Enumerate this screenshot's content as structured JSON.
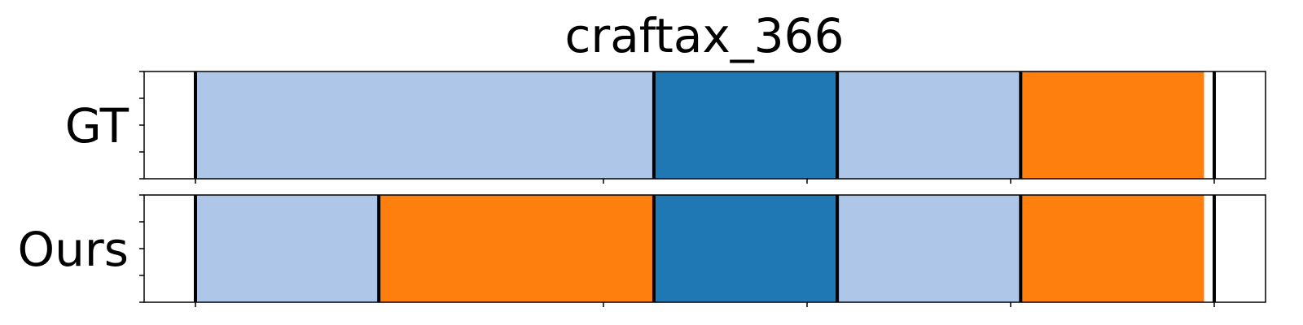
{
  "chart_data": {
    "type": "bar",
    "title": "craftax_366",
    "xlim": [
      0,
      1
    ],
    "rows": [
      {
        "label": "GT",
        "segments": [
          {
            "start": 0.05,
            "end": 0.5,
            "color": "#aec7e8"
          },
          {
            "start": 0.5,
            "end": 0.68,
            "color": "#1f77b4"
          },
          {
            "start": 0.68,
            "end": 0.86,
            "color": "#aec7e8"
          },
          {
            "start": 0.86,
            "end": 1.04,
            "color": "#ff7f0e"
          }
        ]
      },
      {
        "label": "Ours",
        "segments": [
          {
            "start": 0.05,
            "end": 0.23,
            "color": "#aec7e8"
          },
          {
            "start": 0.23,
            "end": 0.5,
            "color": "#ff7f0e"
          },
          {
            "start": 0.5,
            "end": 0.68,
            "color": "#1f77b4"
          },
          {
            "start": 0.68,
            "end": 0.86,
            "color": "#aec7e8"
          },
          {
            "start": 0.86,
            "end": 1.04,
            "color": "#ff7f0e"
          }
        ]
      }
    ],
    "x_ticks": [
      0.05,
      0.45,
      0.65,
      0.85,
      1.05
    ],
    "y_ticks_per_row": 5,
    "grid": false
  }
}
